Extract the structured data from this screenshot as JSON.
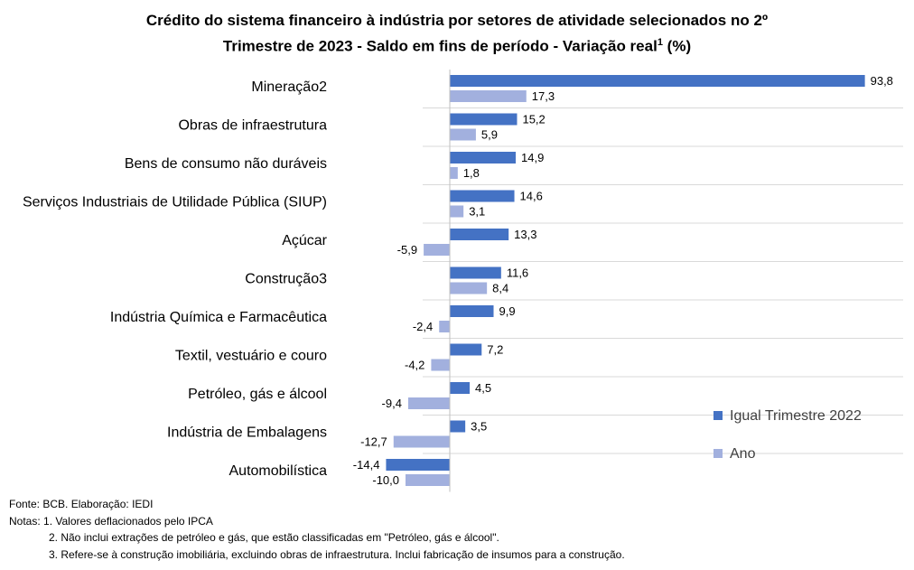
{
  "title": {
    "line1": "Crédito do sistema financeiro à indústria por setores de atividade selecionados no 2º",
    "line2_main": "Trimestre de 2023 - Saldo em fins de período - Variação real",
    "line2_sup": "1",
    "line2_tail": " (%)"
  },
  "chart_data": {
    "type": "bar",
    "orientation": "horizontal",
    "categories": [
      "Mineração2",
      "Obras de infraestrutura",
      "Bens de consumo não duráveis",
      "Serviços Industriais de Utilidade Pública (SIUP)",
      "Açúcar",
      "Construção3",
      "Indústria Química e Farmacêutica",
      "Textil, vestuário e couro",
      "Petróleo, gás e álcool",
      "Indústria de Embalagens",
      "Automobilística"
    ],
    "series": [
      {
        "name": "Igual Trimestre 2022",
        "color": "#4472c4",
        "values": [
          93.8,
          15.2,
          14.9,
          14.6,
          13.3,
          11.6,
          9.9,
          7.2,
          4.5,
          3.5,
          -14.4
        ],
        "labels": [
          "93,8",
          "15,2",
          "14,9",
          "14,6",
          "13,3",
          "11,6",
          "9,9",
          "7,2",
          "4,5",
          "3,5",
          "-14,4"
        ]
      },
      {
        "name": "Ano",
        "color": "#a2b0de",
        "values": [
          17.3,
          5.9,
          1.8,
          3.1,
          -5.9,
          8.4,
          -2.4,
          -4.2,
          -9.4,
          -12.7,
          -10.0
        ],
        "labels": [
          "17,3",
          "5,9",
          "1,8",
          "3,1",
          "-5,9",
          "8,4",
          "-2,4",
          "-4,2",
          "-9,4",
          "-12,7",
          "-10,0"
        ]
      }
    ],
    "legend_position": "right",
    "grid": "horizontal separators between categories"
  },
  "footer": {
    "source": "Fonte: BCB. Elaboração: IEDI",
    "notes_label": "Notas:",
    "note1": "1. Valores deflacionados pelo IPCA",
    "note2": "2. Não inclui extrações de petróleo e gás, que estão classificadas em \"Petróleo, gás e álcool\".",
    "note3": "3. Refere-se à construção imobiliária, excluindo obras de infraestrutura. Inclui fabricação de insumos para a construção."
  }
}
